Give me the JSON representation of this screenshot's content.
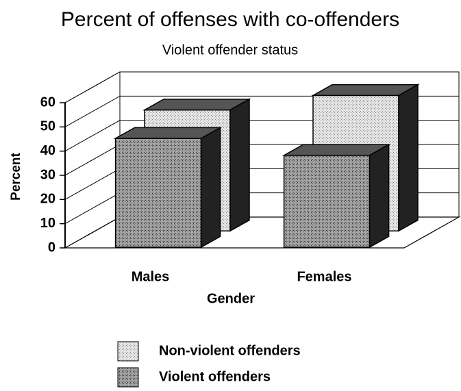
{
  "chart_data": {
    "type": "bar3d",
    "title": "Percent of offenses with co-offenders",
    "subtitle": "Violent offender status",
    "x_label": "Gender",
    "y_label": "Percent",
    "categories": [
      "Males",
      "Females"
    ],
    "series": [
      {
        "name": "Non-violent offenders",
        "color": "#e4e4e4",
        "values": [
          50,
          56
        ]
      },
      {
        "name": "Violent offenders",
        "color": "#a4a4a4",
        "values": [
          45,
          38
        ]
      }
    ],
    "ylim": [
      0,
      60
    ],
    "yticks": [
      0,
      10,
      20,
      30,
      40,
      50,
      60
    ],
    "grid": true
  }
}
